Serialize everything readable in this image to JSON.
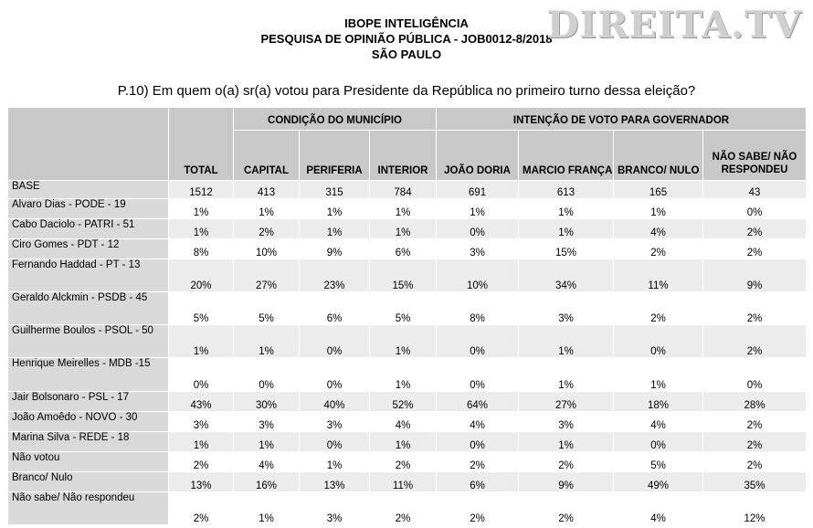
{
  "header": {
    "line1": "IBOPE INTELIGÊNCIA",
    "line2": "PESQUISA DE OPINIÃO PÚBLICA - JOB0012-8/2018",
    "line3": "SÃO PAULO"
  },
  "watermark": "DIREITA.TV",
  "question": "P.10) Em quem o(a) sr(a) votou para Presidente da República no primeiro turno dessa eleição?",
  "table": {
    "group_municipio": "CONDIÇÃO DO MUNICÍPIO",
    "group_governador": "INTENÇÃO DE VOTO PARA GOVERNADOR",
    "columns": [
      "TOTAL",
      "CAPITAL",
      "PERIFERIA",
      "INTERIOR",
      "JOÃO DORIA",
      "MARCIO FRANÇA",
      "BRANCO/ NULO",
      "NÃO SABE/ NÃO RESPONDEU"
    ],
    "rows": [
      {
        "label": "BASE",
        "values": [
          "1512",
          "413",
          "315",
          "784",
          "691",
          "613",
          "165",
          "43"
        ]
      },
      {
        "label": "Alvaro Dias - PODE - 19",
        "values": [
          "1%",
          "1%",
          "1%",
          "1%",
          "1%",
          "1%",
          "1%",
          "0%"
        ]
      },
      {
        "label": "Cabo Daciolo - PATRI - 51",
        "values": [
          "1%",
          "2%",
          "1%",
          "1%",
          "0%",
          "1%",
          "4%",
          "2%"
        ]
      },
      {
        "label": "Ciro Gomes - PDT - 12",
        "values": [
          "8%",
          "10%",
          "9%",
          "6%",
          "3%",
          "15%",
          "2%",
          "2%"
        ]
      },
      {
        "label": "Fernando Haddad - PT - 13",
        "values": [
          "20%",
          "27%",
          "23%",
          "15%",
          "10%",
          "34%",
          "11%",
          "9%"
        ]
      },
      {
        "label": "Geraldo Alckmin - PSDB - 45",
        "values": [
          "5%",
          "5%",
          "6%",
          "5%",
          "8%",
          "3%",
          "2%",
          "2%"
        ]
      },
      {
        "label": "Guilherme Boulos - PSOL - 50",
        "values": [
          "1%",
          "1%",
          "0%",
          "1%",
          "0%",
          "1%",
          "0%",
          "2%"
        ]
      },
      {
        "label": "Henrique Meirelles - MDB -15",
        "values": [
          "0%",
          "0%",
          "0%",
          "1%",
          "0%",
          "1%",
          "1%",
          "0%"
        ]
      },
      {
        "label": "Jair Bolsonaro - PSL - 17",
        "values": [
          "43%",
          "30%",
          "40%",
          "52%",
          "64%",
          "27%",
          "18%",
          "28%"
        ]
      },
      {
        "label": "João Amoêdo - NOVO - 30",
        "values": [
          "3%",
          "3%",
          "3%",
          "4%",
          "4%",
          "3%",
          "4%",
          "2%"
        ]
      },
      {
        "label": "Marina Silva - REDE - 18",
        "values": [
          "1%",
          "1%",
          "0%",
          "1%",
          "0%",
          "1%",
          "0%",
          "2%"
        ]
      },
      {
        "label": "Não votou",
        "values": [
          "2%",
          "4%",
          "1%",
          "2%",
          "2%",
          "2%",
          "5%",
          "2%"
        ]
      },
      {
        "label": "Branco/ Nulo",
        "values": [
          "13%",
          "16%",
          "13%",
          "11%",
          "6%",
          "9%",
          "49%",
          "35%"
        ]
      },
      {
        "label": "Não sabe/ Não respondeu",
        "values": [
          "2%",
          "1%",
          "3%",
          "2%",
          "2%",
          "2%",
          "4%",
          "12%"
        ]
      }
    ]
  }
}
